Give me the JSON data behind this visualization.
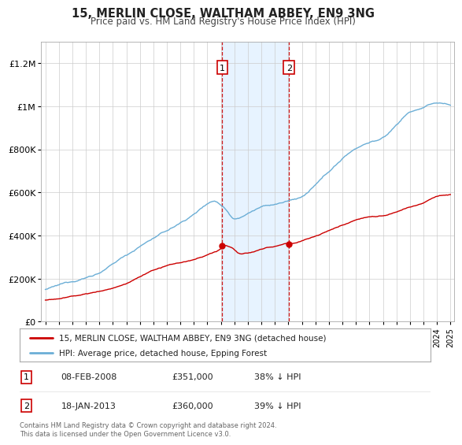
{
  "title": "15, MERLIN CLOSE, WALTHAM ABBEY, EN9 3NG",
  "subtitle": "Price paid vs. HM Land Registry's House Price Index (HPI)",
  "legend_label_red": "15, MERLIN CLOSE, WALTHAM ABBEY, EN9 3NG (detached house)",
  "legend_label_blue": "HPI: Average price, detached house, Epping Forest",
  "transaction1_date": "08-FEB-2008",
  "transaction1_price": 351000,
  "transaction1_pct": "38% ↓ HPI",
  "transaction2_date": "18-JAN-2013",
  "transaction2_price": 360000,
  "transaction2_pct": "39% ↓ HPI",
  "footnote": "Contains HM Land Registry data © Crown copyright and database right 2024.\nThis data is licensed under the Open Government Licence v3.0.",
  "hpi_color": "#6baed6",
  "price_color": "#cc0000",
  "ylim_max": 1300000,
  "ylim_min": 0,
  "background_color": "#ffffff",
  "grid_color": "#cccccc",
  "shade_color": "#ddeeff",
  "t1_year": 2008.1,
  "t2_year": 2013.05,
  "xmin": 1995,
  "xmax": 2025
}
